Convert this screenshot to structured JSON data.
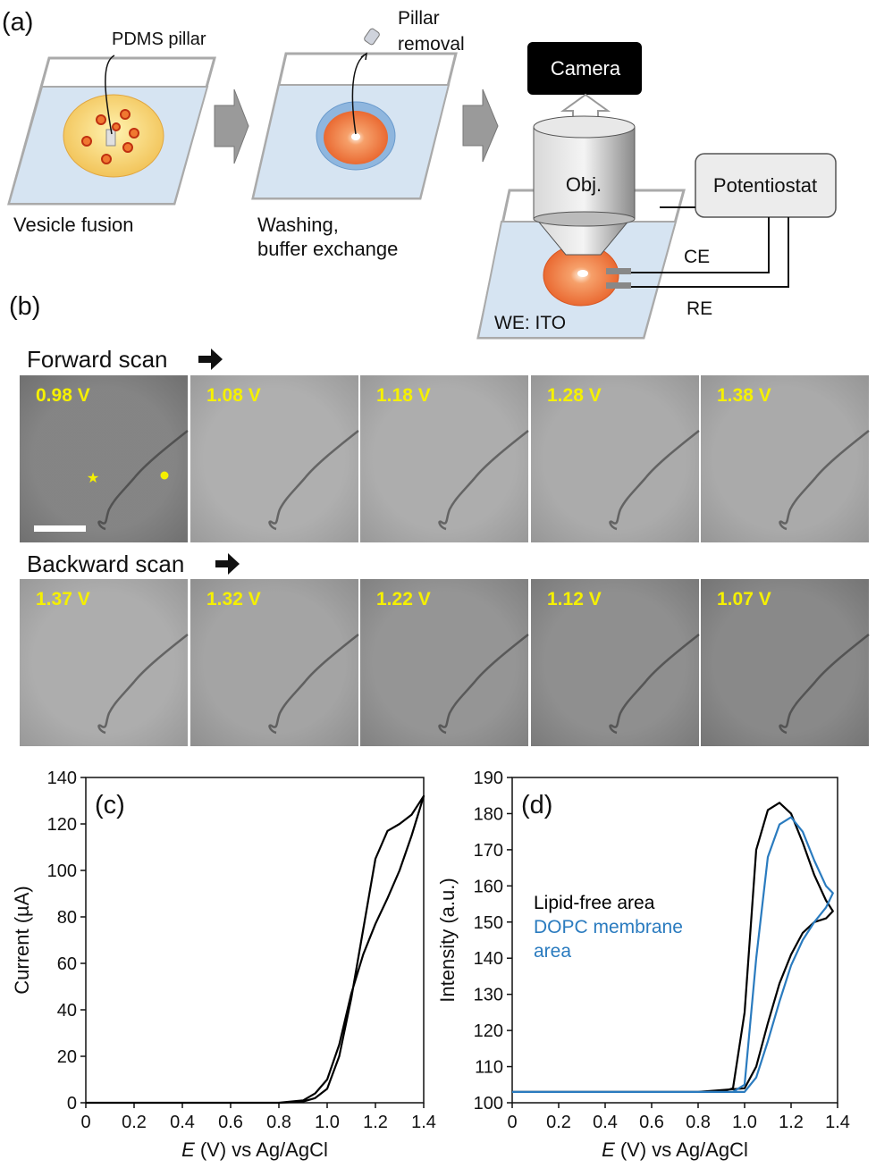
{
  "panel_a": {
    "label": "(a)",
    "pdms_pillar": "PDMS pillar",
    "vesicle_fusion": "Vesicle fusion",
    "pillar_removal": [
      "Pillar",
      "removal"
    ],
    "washing": [
      "Washing,",
      "buffer exchange"
    ],
    "camera": "Camera",
    "objective": "Obj.",
    "potentiostat": "Potentiostat",
    "ce": "CE",
    "re": "RE",
    "we": "WE: ITO"
  },
  "panel_b": {
    "label": "(b)",
    "forward": {
      "title": "Forward scan",
      "potentials": [
        "0.98 V",
        "1.08 V",
        "1.18 V",
        "1.28 V",
        "1.38 V"
      ]
    },
    "backward": {
      "title": "Backward scan",
      "potentials": [
        "1.37 V",
        "1.32 V",
        "1.22 V",
        "1.12 V",
        "1.07 V"
      ]
    }
  },
  "chart_data": [
    {
      "type": "line",
      "panel_label": "(c)",
      "xlabel": {
        "symbol": "E",
        "text": "(V) vs Ag/AgCl"
      },
      "ylabel": "Current (µA)",
      "x": [
        0,
        0.2,
        0.4,
        0.6,
        0.8,
        0.9,
        0.95,
        1.0,
        1.05,
        1.1,
        1.15,
        1.2,
        1.25,
        1.3,
        1.35,
        1.4,
        1.35,
        1.3,
        1.25,
        1.2,
        1.15,
        1.1,
        1.05,
        1.0,
        0.95,
        0.9,
        0.8,
        0.4,
        0
      ],
      "series": [
        {
          "color": "#000000",
          "values": [
            0,
            0,
            0,
            0,
            0,
            0.5,
            2,
            6,
            20,
            45,
            75,
            105,
            117,
            120,
            124,
            132,
            115,
            100,
            88,
            77,
            64,
            47,
            25,
            10,
            4,
            1,
            0,
            0,
            0
          ]
        }
      ],
      "xlim": [
        0,
        1.4
      ],
      "xticks": [
        0,
        0.2,
        0.4,
        0.6,
        0.8,
        {
          "value": 1,
          "label": "1.0"
        },
        1.2,
        1.4
      ],
      "ylim": [
        0,
        140
      ],
      "yticks": [
        0,
        20,
        40,
        60,
        80,
        100,
        120,
        140
      ]
    },
    {
      "type": "line",
      "panel_label": "(d)",
      "xlabel": {
        "symbol": "E",
        "text": "(V) vs Ag/AgCl"
      },
      "ylabel": "Intensity (a.u.)",
      "x": [
        0,
        0.2,
        0.4,
        0.6,
        0.8,
        0.9,
        0.95,
        1.0,
        1.05,
        1.1,
        1.15,
        1.2,
        1.25,
        1.3,
        1.35,
        1.38,
        1.35,
        1.3,
        1.25,
        1.2,
        1.15,
        1.1,
        1.05,
        1.0,
        0.8,
        0.4,
        0
      ],
      "series": [
        {
          "name": "Lipid-free area",
          "color": "#000000",
          "values": [
            103,
            103,
            103,
            103,
            103,
            103,
            104,
            125,
            170,
            181,
            183,
            180,
            172,
            163,
            156,
            153,
            151,
            150,
            147,
            141,
            133,
            122,
            110,
            104,
            103,
            103,
            103
          ]
        },
        {
          "name": "DOPC membrane area",
          "color": "#2a7bbf",
          "values": [
            103,
            103,
            103,
            103,
            103,
            103,
            103,
            105,
            140,
            168,
            177,
            179,
            175,
            167,
            160,
            158,
            154,
            150,
            145,
            138,
            128,
            117,
            107,
            103,
            103,
            103,
            103
          ]
        }
      ],
      "legend": "left",
      "xlim": [
        0,
        1.4
      ],
      "xticks": [
        0,
        0.2,
        0.4,
        0.6,
        0.8,
        {
          "value": 1,
          "label": "1.0"
        },
        1.2,
        1.4
      ],
      "ylim": [
        100,
        190
      ],
      "yticks": [
        100,
        110,
        120,
        130,
        140,
        150,
        160,
        170,
        180,
        190
      ]
    }
  ]
}
